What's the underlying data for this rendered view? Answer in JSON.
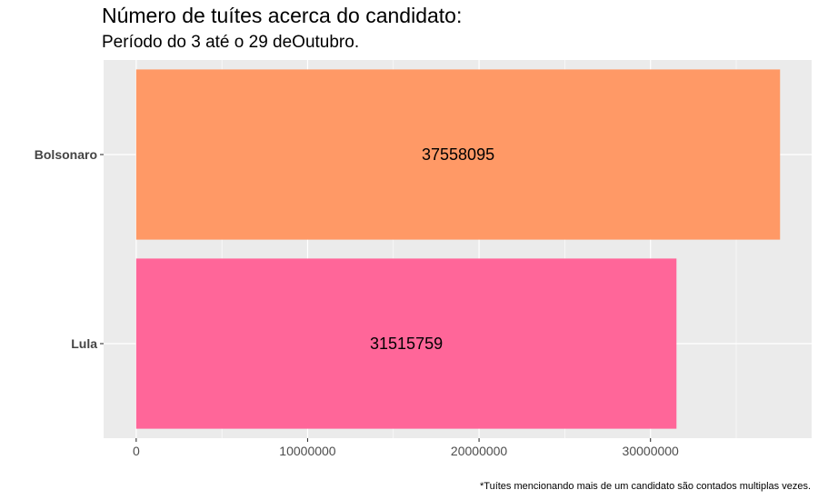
{
  "chart_data": {
    "type": "bar",
    "orientation": "horizontal",
    "title": "Número de tuítes acerca do candidato:",
    "subtitle": "Período do 3 até o 29 deOutubro.",
    "caption": "*Tuítes mencionando mais de um candidato são contados multiplas vezes.",
    "categories": [
      "Bolsonaro",
      "Lula"
    ],
    "values": [
      37558095,
      31515759
    ],
    "data_labels": [
      "37558095",
      "31515759"
    ],
    "colors": [
      "#ff9966",
      "#ff6699"
    ],
    "xlim": [
      -1900000,
      39400000
    ],
    "xticks": [
      0,
      10000000,
      20000000,
      30000000
    ],
    "xtick_labels": [
      "0",
      "10000000",
      "20000000",
      "30000000"
    ],
    "grid": true,
    "panel_background": "#ebebeb",
    "grid_color": "#ffffff"
  }
}
